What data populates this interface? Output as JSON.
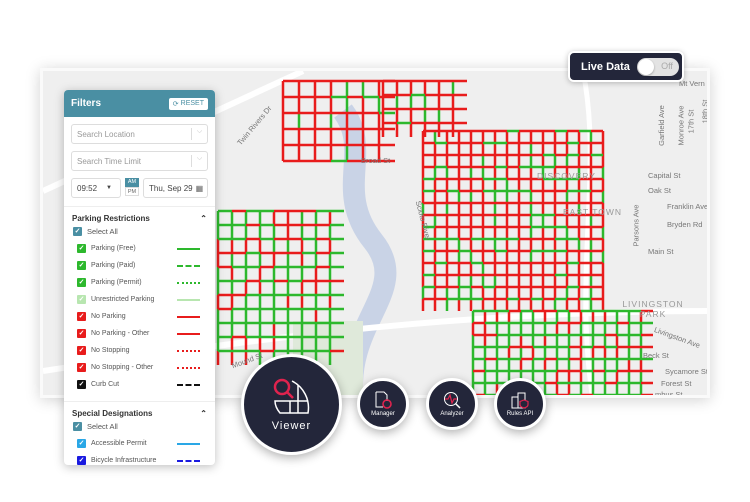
{
  "live_data": {
    "label": "Live Data",
    "toggle_state": "Off",
    "enabled": false
  },
  "filters": {
    "title": "Filters",
    "reset_label": "RESET",
    "search_location_placeholder": "Search Location",
    "search_time_limit_placeholder": "Search Time Limit",
    "time": "09:52",
    "am": "AM",
    "pm": "PM",
    "selected_period": "AM",
    "date": "Thu, Sep 29",
    "sections": [
      {
        "title": "Parking Restrictions",
        "select_all": "Select All",
        "items": [
          {
            "label": "Parking (Free)",
            "color": "#2db82d",
            "style": "solid",
            "checked": true
          },
          {
            "label": "Parking (Paid)",
            "color": "#2db82d",
            "style": "dashed",
            "checked": true
          },
          {
            "label": "Parking (Permit)",
            "color": "#2db82d",
            "style": "dotted",
            "checked": true
          },
          {
            "label": "Unrestricted Parking",
            "color": "#b8e6b0",
            "style": "solid",
            "checked": true
          },
          {
            "label": "No Parking",
            "color": "#e81c1c",
            "style": "solid",
            "checked": true
          },
          {
            "label": "No Parking - Other",
            "color": "#e81c1c",
            "style": "solid",
            "checked": true
          },
          {
            "label": "No Stopping",
            "color": "#e81c1c",
            "style": "dotted",
            "checked": true
          },
          {
            "label": "No Stopping - Other",
            "color": "#e81c1c",
            "style": "dotted",
            "checked": true
          },
          {
            "label": "Curb Cut",
            "color": "#111111",
            "style": "dashed",
            "checked": true
          }
        ]
      },
      {
        "title": "Special Designations",
        "select_all": "Select All",
        "items": [
          {
            "label": "Accessible Permit",
            "color": "#2aa7e6",
            "style": "solid",
            "checked": true
          },
          {
            "label": "Bicycle Infrastructure",
            "color": "#1a1ae0",
            "style": "dashed",
            "checked": true
          }
        ]
      }
    ]
  },
  "map": {
    "labels": [
      "Twin Rivers Dr",
      "Scioto River",
      "Broad St",
      "Mound St",
      "Mt Vern",
      "Garfield Ave",
      "Monroe Ave",
      "17th St",
      "18th St",
      "Capital St",
      "Oak St",
      "Franklin Ave",
      "Bryden Rd",
      "Parsons Ave",
      "Main St",
      "LIVINGSTON PARK",
      "Livingston Ave",
      "Beck St",
      "Sycamore St",
      "Forest St",
      "mbus St",
      "DISCOVERY",
      "EAST TOWN"
    ]
  },
  "tools": [
    {
      "label": "Viewer",
      "icon": "map-search-icon"
    },
    {
      "label": "Manager",
      "icon": "document-gear-icon"
    },
    {
      "label": "Analyzer",
      "icon": "magnifier-pulse-icon"
    },
    {
      "label": "Rules API",
      "icon": "buildings-shield-icon"
    }
  ],
  "colors": {
    "header": "#4a8fa3",
    "dark": "#23263a",
    "accent": "#e0234e",
    "green": "#2db82d",
    "red": "#e81c1c"
  }
}
